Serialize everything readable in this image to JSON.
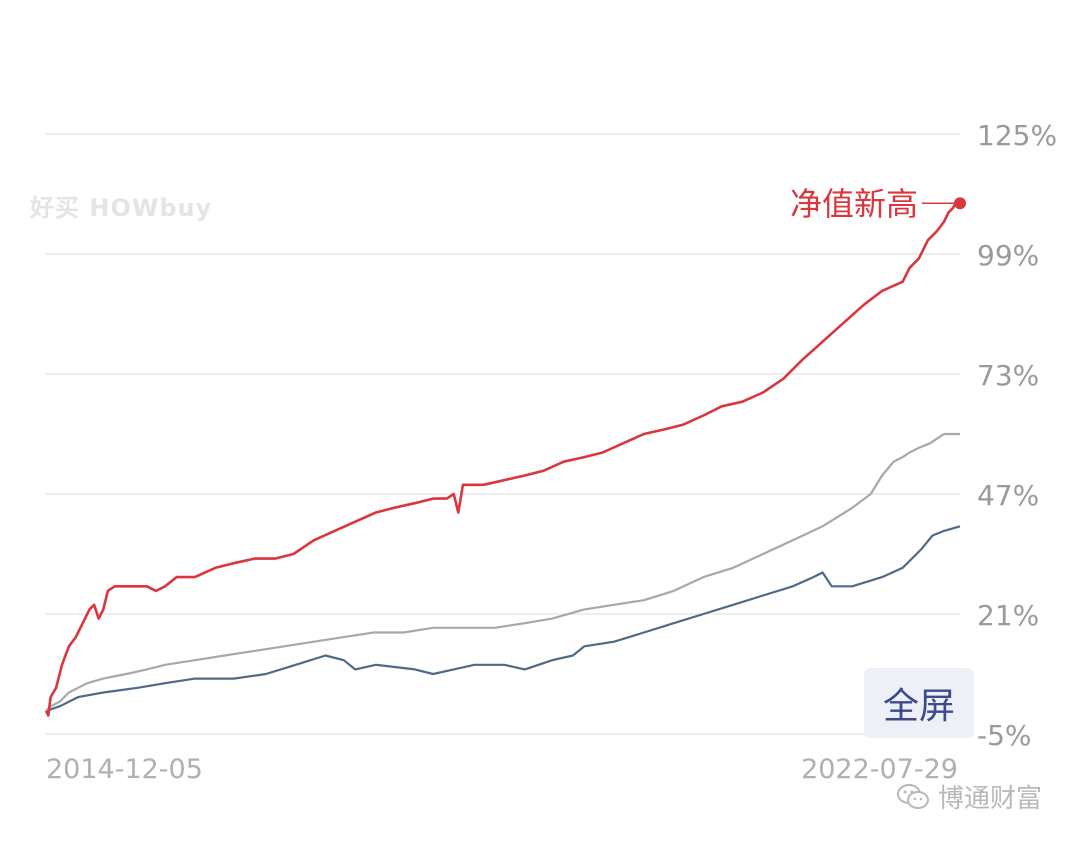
{
  "watermark": "好买 HOWbuy",
  "fullscreen_label": "全屏",
  "footer": {
    "brand": "博通财富"
  },
  "colors": {
    "fund": "#d9363e",
    "benchmark_a": "#a8a8a8",
    "benchmark_b": "#4f6a86",
    "grid": "#e8e8e8",
    "tick": "#9a9a9a"
  },
  "chart_data": {
    "type": "line",
    "ylim": [
      -5,
      125
    ],
    "yticks": [
      "125%",
      "99%",
      "73%",
      "47%",
      "21%",
      "-5%"
    ],
    "ytick_values": [
      125,
      99,
      73,
      47,
      21,
      -5
    ],
    "xlim": [
      "2014-12-05",
      "2022-07-29"
    ],
    "xtick_labels": [
      "2014-12-05",
      "2022-07-29"
    ],
    "annotation": {
      "text": "净值新高",
      "x": "2022-07-29",
      "y": 110
    },
    "series": [
      {
        "color_key": "fund",
        "points": [
          [
            "2014-12-05",
            0
          ],
          [
            "2014-12-12",
            -1
          ],
          [
            "2014-12-19",
            3
          ],
          [
            "2015-01-05",
            5
          ],
          [
            "2015-01-23",
            10
          ],
          [
            "2015-02-13",
            14
          ],
          [
            "2015-03-06",
            16
          ],
          [
            "2015-03-27",
            19
          ],
          [
            "2015-04-17",
            22
          ],
          [
            "2015-05-01",
            23
          ],
          [
            "2015-05-15",
            20
          ],
          [
            "2015-05-29",
            22
          ],
          [
            "2015-06-12",
            26
          ],
          [
            "2015-07-03",
            27
          ],
          [
            "2015-08-07",
            27
          ],
          [
            "2015-09-11",
            27
          ],
          [
            "2015-10-09",
            27
          ],
          [
            "2015-11-06",
            26
          ],
          [
            "2015-12-04",
            27
          ],
          [
            "2016-01-08",
            29
          ],
          [
            "2016-03-04",
            29
          ],
          [
            "2016-05-06",
            31
          ],
          [
            "2016-07-01",
            32
          ],
          [
            "2016-09-02",
            33
          ],
          [
            "2016-11-04",
            33
          ],
          [
            "2016-12-30",
            34
          ],
          [
            "2017-03-03",
            37
          ],
          [
            "2017-05-05",
            39
          ],
          [
            "2017-07-07",
            41
          ],
          [
            "2017-09-08",
            43
          ],
          [
            "2017-11-03",
            44
          ],
          [
            "2018-01-05",
            45
          ],
          [
            "2018-03-02",
            46
          ],
          [
            "2018-04-13",
            46
          ],
          [
            "2018-05-04",
            47
          ],
          [
            "2018-05-18",
            43
          ],
          [
            "2018-06-01",
            49
          ],
          [
            "2018-08-03",
            49
          ],
          [
            "2018-10-05",
            50
          ],
          [
            "2018-12-07",
            51
          ],
          [
            "2019-02-01",
            52
          ],
          [
            "2019-04-05",
            54
          ],
          [
            "2019-06-07",
            55
          ],
          [
            "2019-08-02",
            56
          ],
          [
            "2019-10-04",
            58
          ],
          [
            "2019-12-06",
            60
          ],
          [
            "2020-02-07",
            61
          ],
          [
            "2020-04-03",
            62
          ],
          [
            "2020-06-05",
            64
          ],
          [
            "2020-07-31",
            66
          ],
          [
            "2020-10-02",
            67
          ],
          [
            "2020-12-04",
            69
          ],
          [
            "2021-02-05",
            72
          ],
          [
            "2021-04-02",
            76
          ],
          [
            "2021-06-04",
            80
          ],
          [
            "2021-08-06",
            84
          ],
          [
            "2021-10-08",
            88
          ],
          [
            "2021-12-03",
            91
          ],
          [
            "2022-02-04",
            93
          ],
          [
            "2022-02-25",
            96
          ],
          [
            "2022-03-25",
            98
          ],
          [
            "2022-04-22",
            102
          ],
          [
            "2022-05-20",
            104
          ],
          [
            "2022-06-10",
            106
          ],
          [
            "2022-06-24",
            108
          ],
          [
            "2022-07-08",
            109
          ],
          [
            "2022-07-15",
            110
          ],
          [
            "2022-07-29",
            110
          ]
        ]
      },
      {
        "color_key": "benchmark_a",
        "points": [
          [
            "2014-12-05",
            0
          ],
          [
            "2014-12-19",
            1
          ],
          [
            "2015-01-16",
            2
          ],
          [
            "2015-02-13",
            4
          ],
          [
            "2015-03-13",
            5
          ],
          [
            "2015-04-10",
            6
          ],
          [
            "2015-05-29",
            7
          ],
          [
            "2015-08-07",
            8
          ],
          [
            "2015-10-09",
            9
          ],
          [
            "2015-12-04",
            10
          ],
          [
            "2016-03-04",
            11
          ],
          [
            "2016-06-03",
            12
          ],
          [
            "2016-09-02",
            13
          ],
          [
            "2016-12-02",
            14
          ],
          [
            "2017-03-03",
            15
          ],
          [
            "2017-06-02",
            16
          ],
          [
            "2017-09-01",
            17
          ],
          [
            "2017-12-01",
            17
          ],
          [
            "2018-03-02",
            18
          ],
          [
            "2018-06-01",
            18
          ],
          [
            "2018-09-07",
            18
          ],
          [
            "2018-12-07",
            19
          ],
          [
            "2019-03-01",
            20
          ],
          [
            "2019-06-07",
            22
          ],
          [
            "2019-09-06",
            23
          ],
          [
            "2019-12-06",
            24
          ],
          [
            "2020-03-06",
            26
          ],
          [
            "2020-06-05",
            29
          ],
          [
            "2020-09-04",
            31
          ],
          [
            "2020-12-04",
            34
          ],
          [
            "2021-03-05",
            37
          ],
          [
            "2021-06-04",
            40
          ],
          [
            "2021-09-03",
            44
          ],
          [
            "2021-10-29",
            47
          ],
          [
            "2021-12-03",
            51
          ],
          [
            "2022-01-07",
            54
          ],
          [
            "2022-02-04",
            55
          ],
          [
            "2022-02-25",
            56
          ],
          [
            "2022-03-25",
            57
          ],
          [
            "2022-04-29",
            58
          ],
          [
            "2022-05-20",
            59
          ],
          [
            "2022-06-10",
            60
          ],
          [
            "2022-07-29",
            60
          ]
        ]
      },
      {
        "color_key": "benchmark_b",
        "points": [
          [
            "2014-12-05",
            0
          ],
          [
            "2015-01-16",
            1
          ],
          [
            "2015-03-13",
            3
          ],
          [
            "2015-05-29",
            4
          ],
          [
            "2015-09-11",
            5
          ],
          [
            "2015-12-04",
            6
          ],
          [
            "2016-03-04",
            7
          ],
          [
            "2016-07-01",
            7
          ],
          [
            "2016-10-07",
            8
          ],
          [
            "2017-01-06",
            10
          ],
          [
            "2017-04-07",
            12
          ],
          [
            "2017-06-02",
            11
          ],
          [
            "2017-07-07",
            9
          ],
          [
            "2017-09-08",
            10
          ],
          [
            "2018-01-05",
            9
          ],
          [
            "2018-03-02",
            8
          ],
          [
            "2018-05-04",
            9
          ],
          [
            "2018-07-06",
            10
          ],
          [
            "2018-10-05",
            10
          ],
          [
            "2018-12-07",
            9
          ],
          [
            "2019-03-01",
            11
          ],
          [
            "2019-05-03",
            12
          ],
          [
            "2019-06-07",
            14
          ],
          [
            "2019-09-06",
            15
          ],
          [
            "2019-12-06",
            17
          ],
          [
            "2020-03-06",
            19
          ],
          [
            "2020-06-05",
            21
          ],
          [
            "2020-09-04",
            23
          ],
          [
            "2020-12-04",
            25
          ],
          [
            "2021-03-05",
            27
          ],
          [
            "2021-05-07",
            29
          ],
          [
            "2021-06-04",
            30
          ],
          [
            "2021-07-02",
            27
          ],
          [
            "2021-09-03",
            27
          ],
          [
            "2021-12-03",
            29
          ],
          [
            "2022-02-04",
            31
          ],
          [
            "2022-03-04",
            33
          ],
          [
            "2022-04-01",
            35
          ],
          [
            "2022-05-06",
            38
          ],
          [
            "2022-06-10",
            39
          ],
          [
            "2022-07-29",
            40
          ]
        ]
      }
    ]
  }
}
